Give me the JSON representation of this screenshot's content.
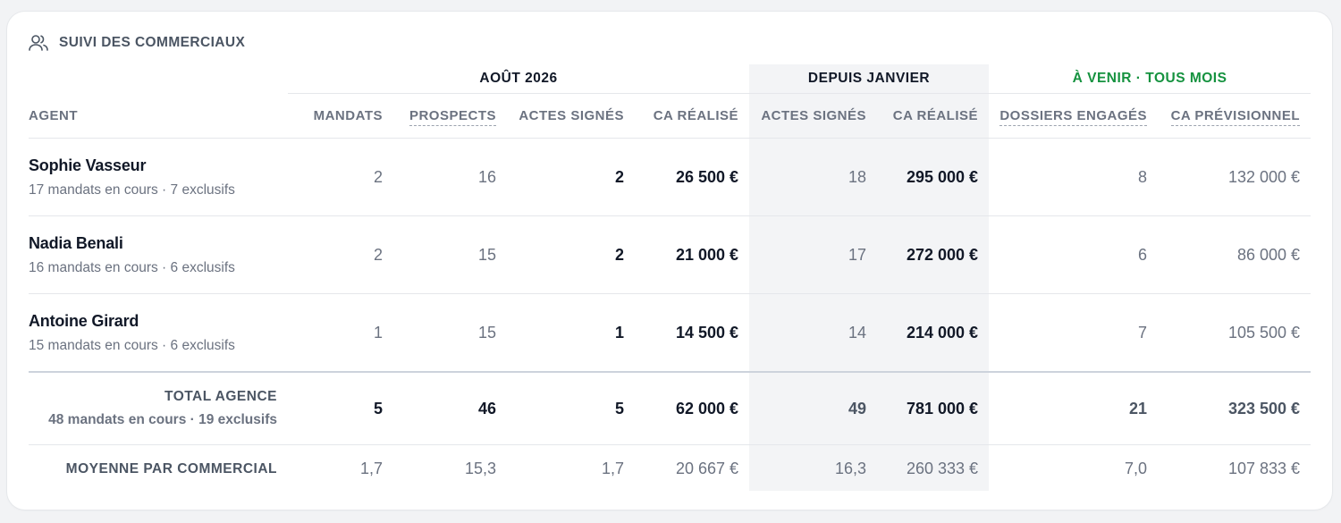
{
  "card": {
    "title": "SUIVI DES COMMERCIAUX",
    "icon": "users-icon"
  },
  "groups": {
    "month": "AOÛT 2026",
    "ytd": "DEPUIS JANVIER",
    "upcoming": "À VENIR · TOUS MOIS"
  },
  "columns": {
    "agent": "AGENT",
    "mandats": "MANDATS",
    "prospects": "PROSPECTS",
    "actes_month": "ACTES SIGNÉS",
    "ca_month": "CA RÉALISÉ",
    "actes_ytd": "ACTES SIGNÉS",
    "ca_ytd": "CA RÉALISÉ",
    "dossiers": "DOSSIERS ENGAGÉS",
    "ca_prev": "CA PRÉVISIONNEL"
  },
  "agents": [
    {
      "name": "Sophie Vasseur",
      "sub": "17 mandats en cours · 7 exclusifs",
      "mandats": "2",
      "prospects": "16",
      "actes_month": "2",
      "ca_month": "26 500 €",
      "actes_ytd": "18",
      "ca_ytd": "295 000 €",
      "dossiers": "8",
      "ca_prev": "132 000 €"
    },
    {
      "name": "Nadia Benali",
      "sub": "16 mandats en cours · 6 exclusifs",
      "mandats": "2",
      "prospects": "15",
      "actes_month": "2",
      "ca_month": "21 000 €",
      "actes_ytd": "17",
      "ca_ytd": "272 000 €",
      "dossiers": "6",
      "ca_prev": "86 000 €"
    },
    {
      "name": "Antoine Girard",
      "sub": "15 mandats en cours · 6 exclusifs",
      "mandats": "1",
      "prospects": "15",
      "actes_month": "1",
      "ca_month": "14 500 €",
      "actes_ytd": "14",
      "ca_ytd": "214 000 €",
      "dossiers": "7",
      "ca_prev": "105 500 €"
    }
  ],
  "total": {
    "label": "TOTAL AGENCE",
    "sub": "48 mandats en cours · 19 exclusifs",
    "mandats": "5",
    "prospects": "46",
    "actes_month": "5",
    "ca_month": "62 000 €",
    "actes_ytd": "49",
    "ca_ytd": "781 000 €",
    "dossiers": "21",
    "ca_prev": "323 500 €"
  },
  "average": {
    "label": "MOYENNE PAR COMMERCIAL",
    "mandats": "1,7",
    "prospects": "15,3",
    "actes_month": "1,7",
    "ca_month": "20 667 €",
    "actes_ytd": "16,3",
    "ca_ytd": "260 333 €",
    "dossiers": "7,0",
    "ca_prev": "107 833 €"
  },
  "colors": {
    "accent_green": "#15923f",
    "highlight_bg": "#f3f4f6"
  }
}
